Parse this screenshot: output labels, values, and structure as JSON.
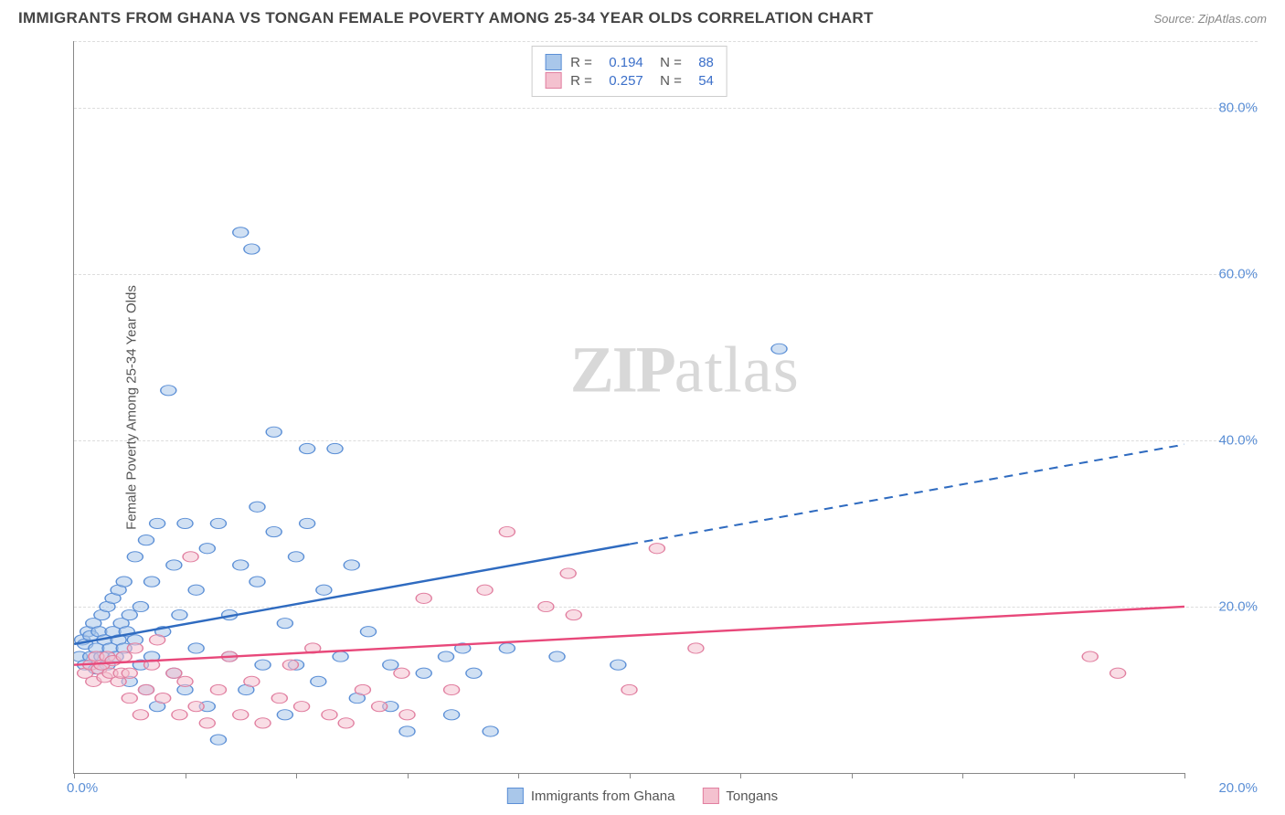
{
  "title": "IMMIGRANTS FROM GHANA VS TONGAN FEMALE POVERTY AMONG 25-34 YEAR OLDS CORRELATION CHART",
  "source_label": "Source: ZipAtlas.com",
  "y_axis_label": "Female Poverty Among 25-34 Year Olds",
  "watermark_a": "ZIP",
  "watermark_b": "atlas",
  "chart": {
    "type": "scatter",
    "xlim": [
      0,
      20
    ],
    "ylim": [
      0,
      88
    ],
    "x_origin_label": "0.0%",
    "x_max_label": "20.0%",
    "y_ticks": [
      {
        "v": 20,
        "label": "20.0%"
      },
      {
        "v": 40,
        "label": "40.0%"
      },
      {
        "v": 60,
        "label": "60.0%"
      },
      {
        "v": 80,
        "label": "80.0%"
      }
    ],
    "x_tick_positions": [
      0,
      2,
      4,
      6,
      8,
      10,
      12,
      14,
      16,
      18,
      20
    ],
    "background_color": "#ffffff",
    "grid_color": "#dddddd",
    "marker_radius": 7,
    "marker_opacity": 0.55,
    "series": [
      {
        "name": "Immigrants from Ghana",
        "fill": "#a9c7ea",
        "stroke": "#5b8fd6",
        "line_color": "#2f6bc0",
        "R": "0.194",
        "N": "88",
        "trend": {
          "y_at_x0": 15.5,
          "y_at_xmax": 39.5,
          "solid_until_x": 10
        },
        "points": [
          [
            0.1,
            14
          ],
          [
            0.15,
            16
          ],
          [
            0.2,
            13
          ],
          [
            0.2,
            15.5
          ],
          [
            0.25,
            17
          ],
          [
            0.3,
            14
          ],
          [
            0.3,
            16.5
          ],
          [
            0.35,
            18
          ],
          [
            0.4,
            15
          ],
          [
            0.4,
            12.5
          ],
          [
            0.45,
            17
          ],
          [
            0.5,
            19
          ],
          [
            0.5,
            14
          ],
          [
            0.55,
            16
          ],
          [
            0.6,
            20
          ],
          [
            0.6,
            13
          ],
          [
            0.65,
            15
          ],
          [
            0.7,
            21
          ],
          [
            0.7,
            17
          ],
          [
            0.75,
            14
          ],
          [
            0.8,
            22
          ],
          [
            0.8,
            16
          ],
          [
            0.85,
            18
          ],
          [
            0.9,
            23
          ],
          [
            0.9,
            15
          ],
          [
            0.95,
            17
          ],
          [
            1.0,
            19
          ],
          [
            1.0,
            11
          ],
          [
            1.1,
            16
          ],
          [
            1.1,
            26
          ],
          [
            1.2,
            13
          ],
          [
            1.2,
            20
          ],
          [
            1.3,
            10
          ],
          [
            1.3,
            28
          ],
          [
            1.4,
            14
          ],
          [
            1.4,
            23
          ],
          [
            1.5,
            8
          ],
          [
            1.5,
            30
          ],
          [
            1.6,
            17
          ],
          [
            1.7,
            46
          ],
          [
            1.8,
            12
          ],
          [
            1.8,
            25
          ],
          [
            1.9,
            19
          ],
          [
            2.0,
            10
          ],
          [
            2.0,
            30
          ],
          [
            2.2,
            15
          ],
          [
            2.2,
            22
          ],
          [
            2.4,
            27
          ],
          [
            2.4,
            8
          ],
          [
            2.6,
            4
          ],
          [
            2.6,
            30
          ],
          [
            2.8,
            14
          ],
          [
            2.8,
            19
          ],
          [
            3.0,
            25
          ],
          [
            3.0,
            65
          ],
          [
            3.1,
            10
          ],
          [
            3.2,
            63
          ],
          [
            3.3,
            32
          ],
          [
            3.3,
            23
          ],
          [
            3.4,
            13
          ],
          [
            3.6,
            29
          ],
          [
            3.6,
            41
          ],
          [
            3.8,
            7
          ],
          [
            3.8,
            18
          ],
          [
            4.0,
            26
          ],
          [
            4.0,
            13
          ],
          [
            4.2,
            39
          ],
          [
            4.2,
            30
          ],
          [
            4.4,
            11
          ],
          [
            4.5,
            22
          ],
          [
            4.7,
            39
          ],
          [
            4.8,
            14
          ],
          [
            5.0,
            25
          ],
          [
            5.1,
            9
          ],
          [
            5.3,
            17
          ],
          [
            5.7,
            8
          ],
          [
            5.7,
            13
          ],
          [
            6.0,
            5
          ],
          [
            6.3,
            12
          ],
          [
            6.7,
            14
          ],
          [
            6.8,
            7
          ],
          [
            7.0,
            15
          ],
          [
            7.2,
            12
          ],
          [
            7.5,
            5
          ],
          [
            7.8,
            15
          ],
          [
            8.7,
            14
          ],
          [
            9.8,
            13
          ],
          [
            12.7,
            51
          ]
        ]
      },
      {
        "name": "Tongans",
        "fill": "#f4c1cf",
        "stroke": "#e17fa0",
        "line_color": "#e8487a",
        "R": "0.257",
        "N": "54",
        "trend": {
          "y_at_x0": 13,
          "y_at_xmax": 20,
          "solid_until_x": 20
        },
        "points": [
          [
            0.2,
            12
          ],
          [
            0.3,
            13
          ],
          [
            0.35,
            11
          ],
          [
            0.4,
            14
          ],
          [
            0.45,
            12.5
          ],
          [
            0.5,
            13
          ],
          [
            0.55,
            11.5
          ],
          [
            0.6,
            14
          ],
          [
            0.65,
            12
          ],
          [
            0.7,
            13.5
          ],
          [
            0.8,
            11
          ],
          [
            0.85,
            12
          ],
          [
            0.9,
            14
          ],
          [
            1.0,
            12
          ],
          [
            1.0,
            9
          ],
          [
            1.1,
            15
          ],
          [
            1.2,
            7
          ],
          [
            1.3,
            10
          ],
          [
            1.4,
            13
          ],
          [
            1.5,
            16
          ],
          [
            1.6,
            9
          ],
          [
            1.8,
            12
          ],
          [
            1.9,
            7
          ],
          [
            2.0,
            11
          ],
          [
            2.1,
            26
          ],
          [
            2.2,
            8
          ],
          [
            2.4,
            6
          ],
          [
            2.6,
            10
          ],
          [
            2.8,
            14
          ],
          [
            3.0,
            7
          ],
          [
            3.2,
            11
          ],
          [
            3.4,
            6
          ],
          [
            3.7,
            9
          ],
          [
            3.9,
            13
          ],
          [
            4.1,
            8
          ],
          [
            4.3,
            15
          ],
          [
            4.6,
            7
          ],
          [
            4.9,
            6
          ],
          [
            5.2,
            10
          ],
          [
            5.5,
            8
          ],
          [
            5.9,
            12
          ],
          [
            6.0,
            7
          ],
          [
            6.3,
            21
          ],
          [
            6.8,
            10
          ],
          [
            7.4,
            22
          ],
          [
            7.8,
            29
          ],
          [
            8.5,
            20
          ],
          [
            8.9,
            24
          ],
          [
            9.0,
            19
          ],
          [
            10.5,
            27
          ],
          [
            18.3,
            14
          ],
          [
            18.8,
            12
          ],
          [
            10.0,
            10
          ],
          [
            11.2,
            15
          ]
        ]
      }
    ]
  },
  "legend_bottom": [
    {
      "label": "Immigrants from Ghana",
      "fill": "#a9c7ea",
      "stroke": "#5b8fd6"
    },
    {
      "label": "Tongans",
      "fill": "#f4c1cf",
      "stroke": "#e17fa0"
    }
  ]
}
